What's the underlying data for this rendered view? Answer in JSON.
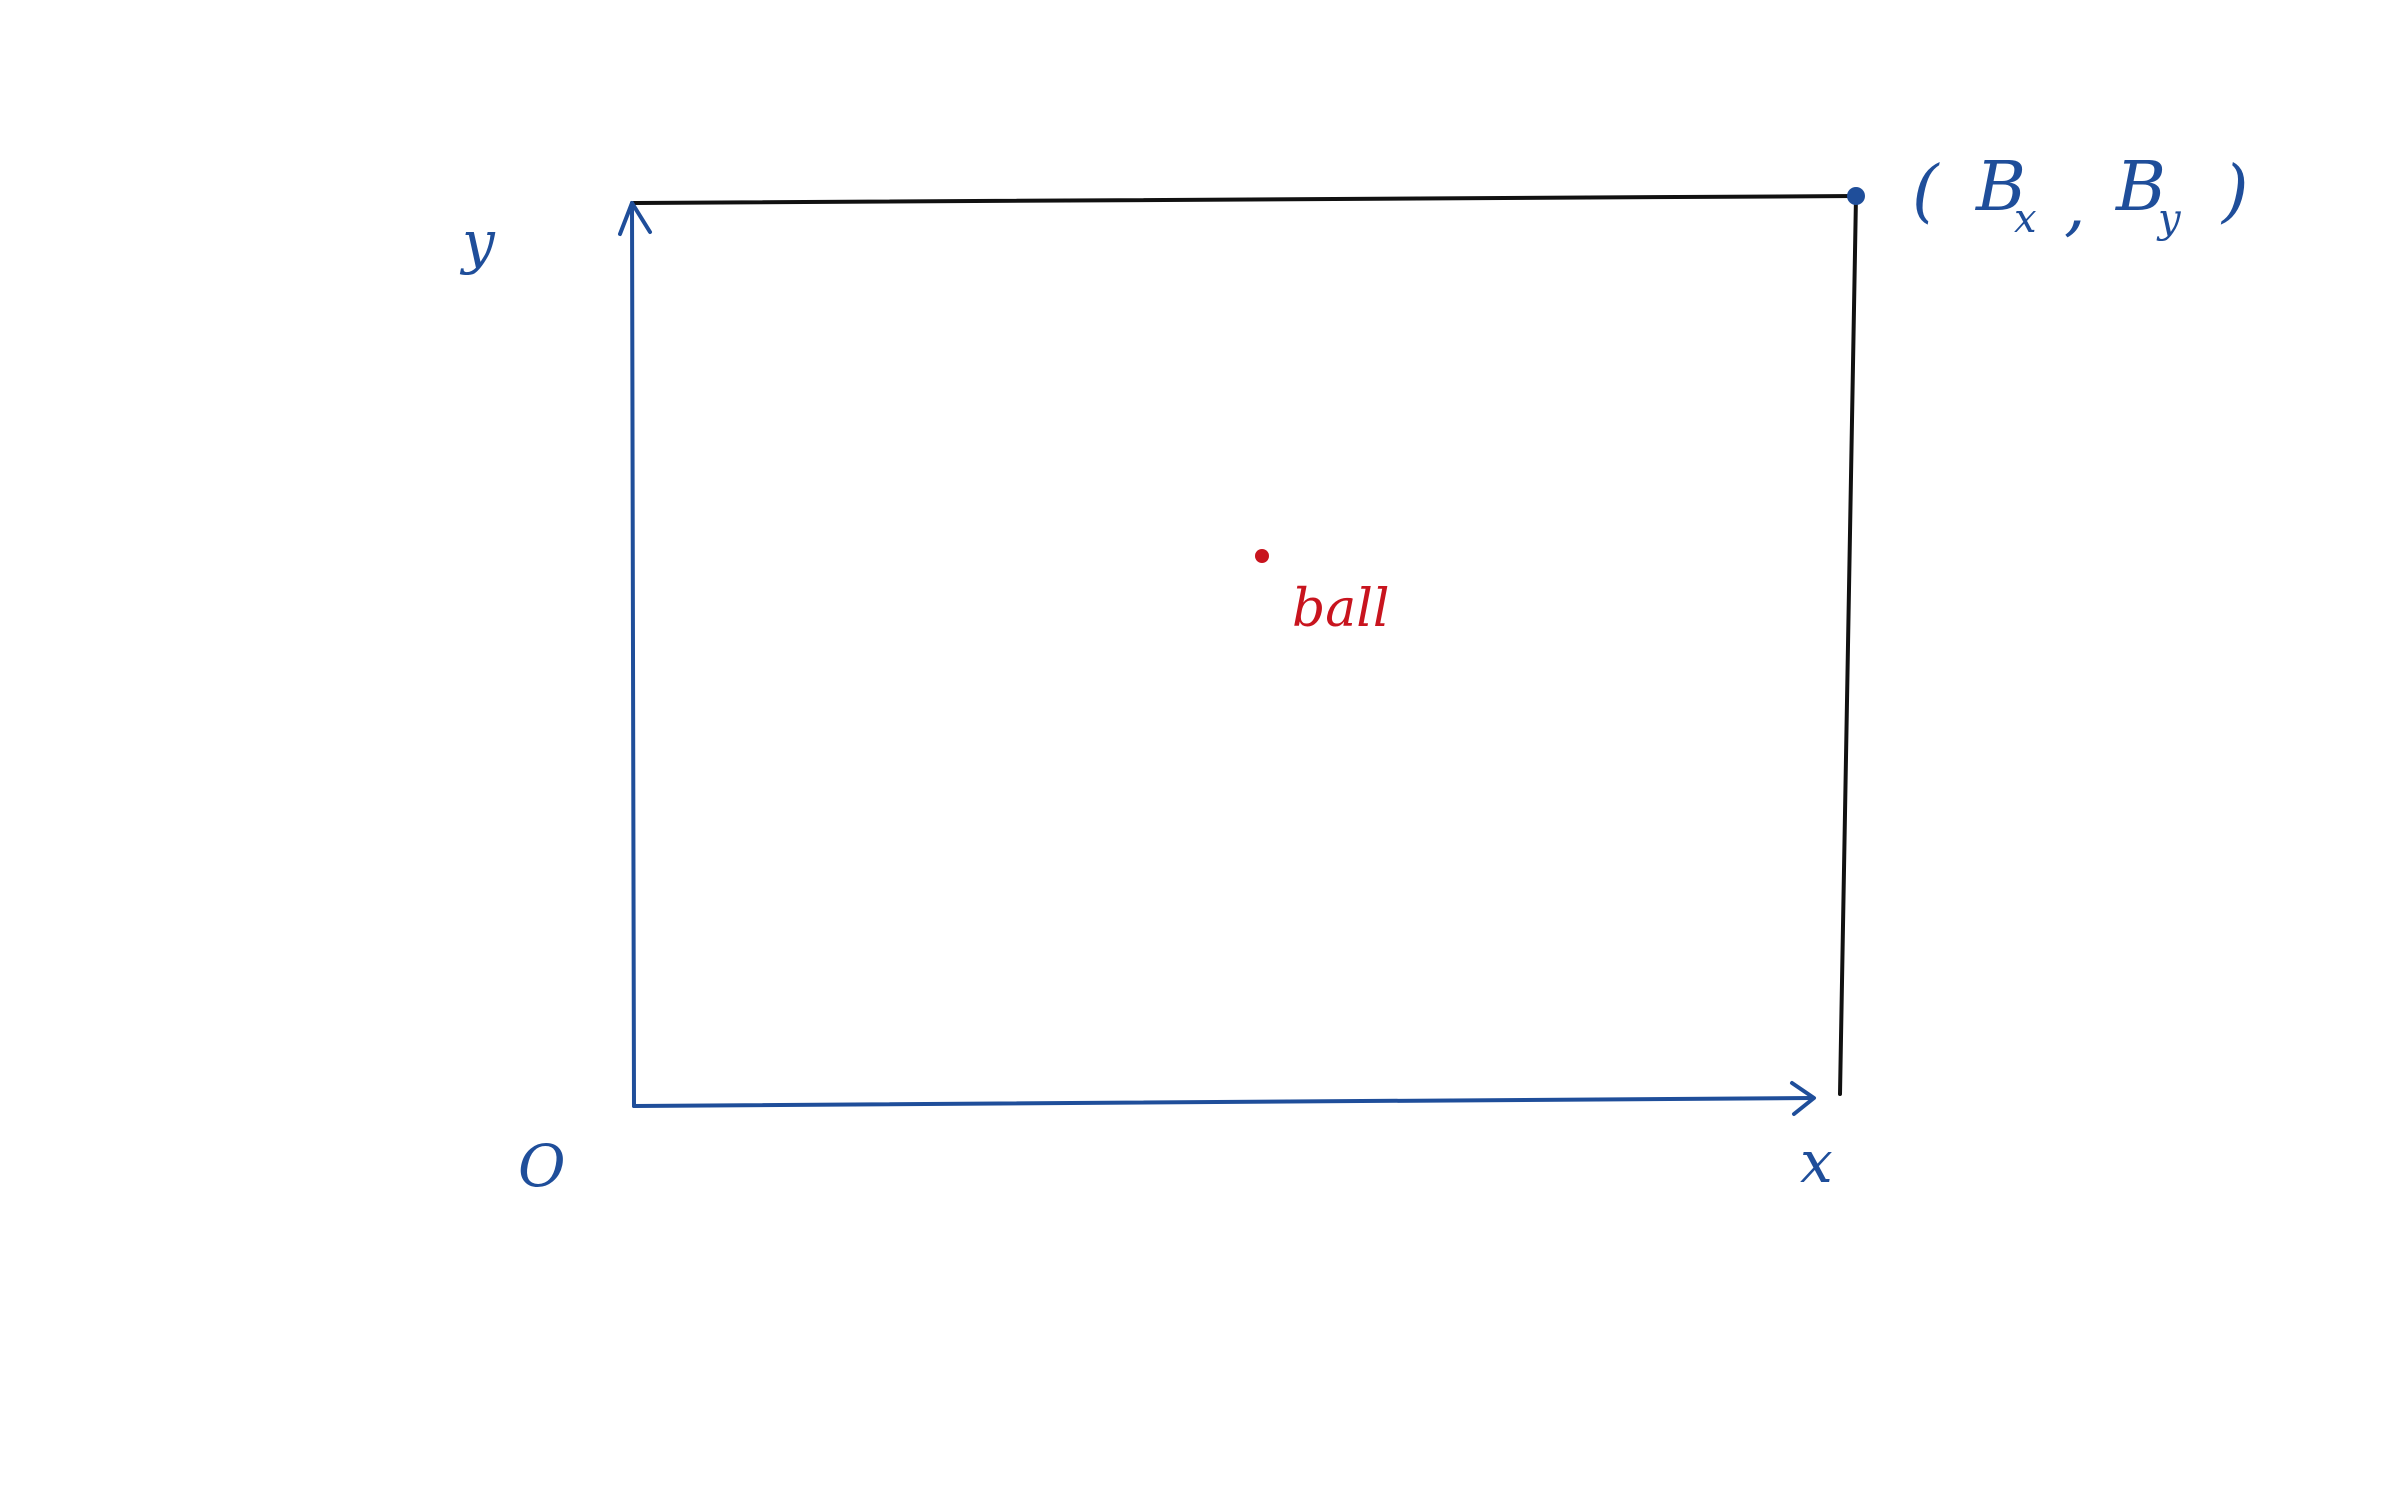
{
  "diagram": {
    "colors": {
      "ink_blue": "#1f4e9a",
      "ink_black": "#111111",
      "ink_red": "#c8141e",
      "background": "#ffffff"
    },
    "origin_label": "O",
    "x_axis_label": "x",
    "y_axis_label": "y",
    "corner_point": {
      "open_paren": "(",
      "bx_main": "B",
      "bx_sub": "x",
      "comma": ",",
      "by_main": "B",
      "by_sub": "y",
      "close_paren": ")"
    },
    "ball_label": "ball"
  }
}
